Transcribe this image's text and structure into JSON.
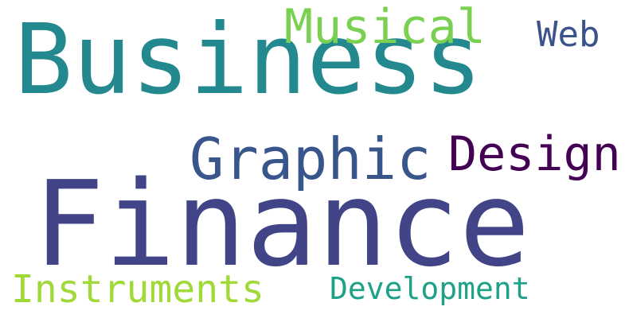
{
  "words": [
    {
      "text": "Business",
      "color": "#23898e"
    },
    {
      "text": "Finance",
      "color": "#414487"
    },
    {
      "text": "Graphic",
      "color": "#39568c"
    },
    {
      "text": "Design",
      "color": "#440154"
    },
    {
      "text": "Musical",
      "color": "#7ad151"
    },
    {
      "text": "Web",
      "color": "#3b528b"
    },
    {
      "text": "Instruments",
      "color": "#a0da39"
    },
    {
      "text": "Development",
      "color": "#1fa188"
    }
  ]
}
